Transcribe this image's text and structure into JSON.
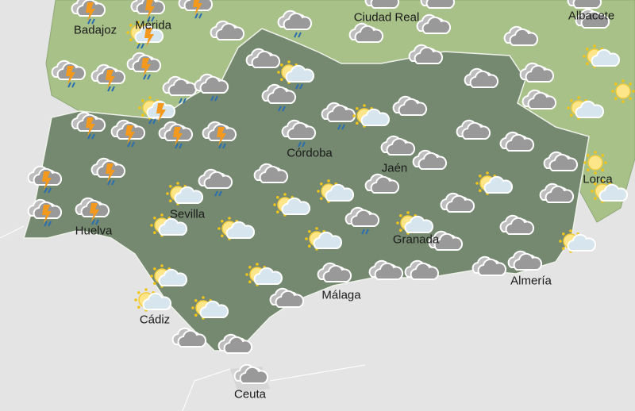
{
  "map": {
    "colors": {
      "background": "#e4e4e4",
      "andalusia": "#74896f",
      "neighbor_regions": "#a8c188",
      "border": "#ffffff"
    },
    "cities": [
      "Badajoz",
      "Mérida",
      "Ciudad Real",
      "Albacete",
      "Córdoba",
      "Jaén",
      "Lorca",
      "Sevilla",
      "Huelva",
      "Granada",
      "Málaga",
      "Almería",
      "Cádiz",
      "Ceuta"
    ],
    "weather_icons": [
      "storm",
      "storm",
      "storm",
      "sun-storm",
      "storm",
      "storm",
      "storm",
      "cloudy",
      "cloudy-rain",
      "cloudy-rain",
      "cloudy-rain",
      "sun-storm",
      "cloudy",
      "partly-sunny-rain",
      "cloudy-rain",
      "storm",
      "storm",
      "storm",
      "storm",
      "cloudy-rain",
      "cloudy-rain",
      "partly-sunny",
      "cloudy",
      "cloudy",
      "cloudy",
      "cloudy",
      "cloudy",
      "cloudy",
      "cloudy",
      "cloudy",
      "cloudy",
      "cloudy",
      "cloudy",
      "cloudy",
      "partly-sunny",
      "sunny",
      "partly-sunny",
      "cloudy",
      "cloudy",
      "cloudy",
      "cloudy",
      "cloudy",
      "sunny",
      "partly-sunny",
      "partly-sunny",
      "cloudy",
      "cloudy",
      "partly-sunny",
      "cloudy",
      "cloudy-rain",
      "partly-sunny",
      "storm",
      "storm",
      "storm",
      "storm",
      "partly-sunny",
      "partly-sunny",
      "partly-sunny",
      "cloudy-rain",
      "partly-sunny",
      "cloudy",
      "cloudy",
      "cloudy",
      "partly-sunny",
      "partly-sunny",
      "partly-sunny",
      "partly-sunny",
      "partly-sunny",
      "partly-sunny",
      "cloudy",
      "cloudy",
      "cloudy",
      "cloudy",
      "cloudy",
      "cloudy",
      "cloudy",
      "cloudy",
      "cloudy"
    ]
  }
}
